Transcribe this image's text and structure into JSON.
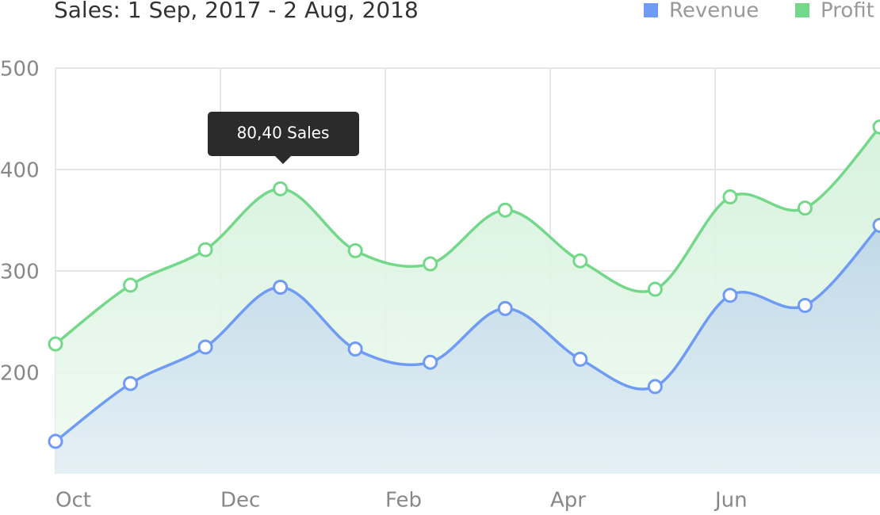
{
  "chart_data": {
    "type": "line",
    "title": "Sales: 1 Sep, 2017 - 2 Aug, 2018",
    "x": [
      0,
      1,
      2,
      3,
      4,
      5,
      6,
      7,
      8,
      9,
      10,
      11
    ],
    "xlim": [
      0,
      11
    ],
    "xticks": [
      {
        "value": 0,
        "label": "Oct"
      },
      {
        "value": 2.2,
        "label": "Dec"
      },
      {
        "value": 4.4,
        "label": "Feb"
      },
      {
        "value": 6.6,
        "label": "Apr"
      },
      {
        "value": 8.8,
        "label": "Jun"
      }
    ],
    "ylim": [
      100,
      500
    ],
    "yticks": [
      200,
      300,
      400,
      500
    ],
    "grid": true,
    "legend": "top-right",
    "series": [
      {
        "name": "Profit",
        "color": "#74d88a",
        "values": [
          228,
          286,
          321,
          381,
          320,
          307,
          360,
          310,
          282,
          373,
          362,
          442
        ]
      },
      {
        "name": "Revenue",
        "color": "#6f9bf5",
        "values": [
          132,
          189,
          225,
          284,
          223,
          210,
          263,
          213,
          186,
          276,
          266,
          345
        ]
      }
    ],
    "annotations": [
      "80,40 Sales"
    ]
  }
}
